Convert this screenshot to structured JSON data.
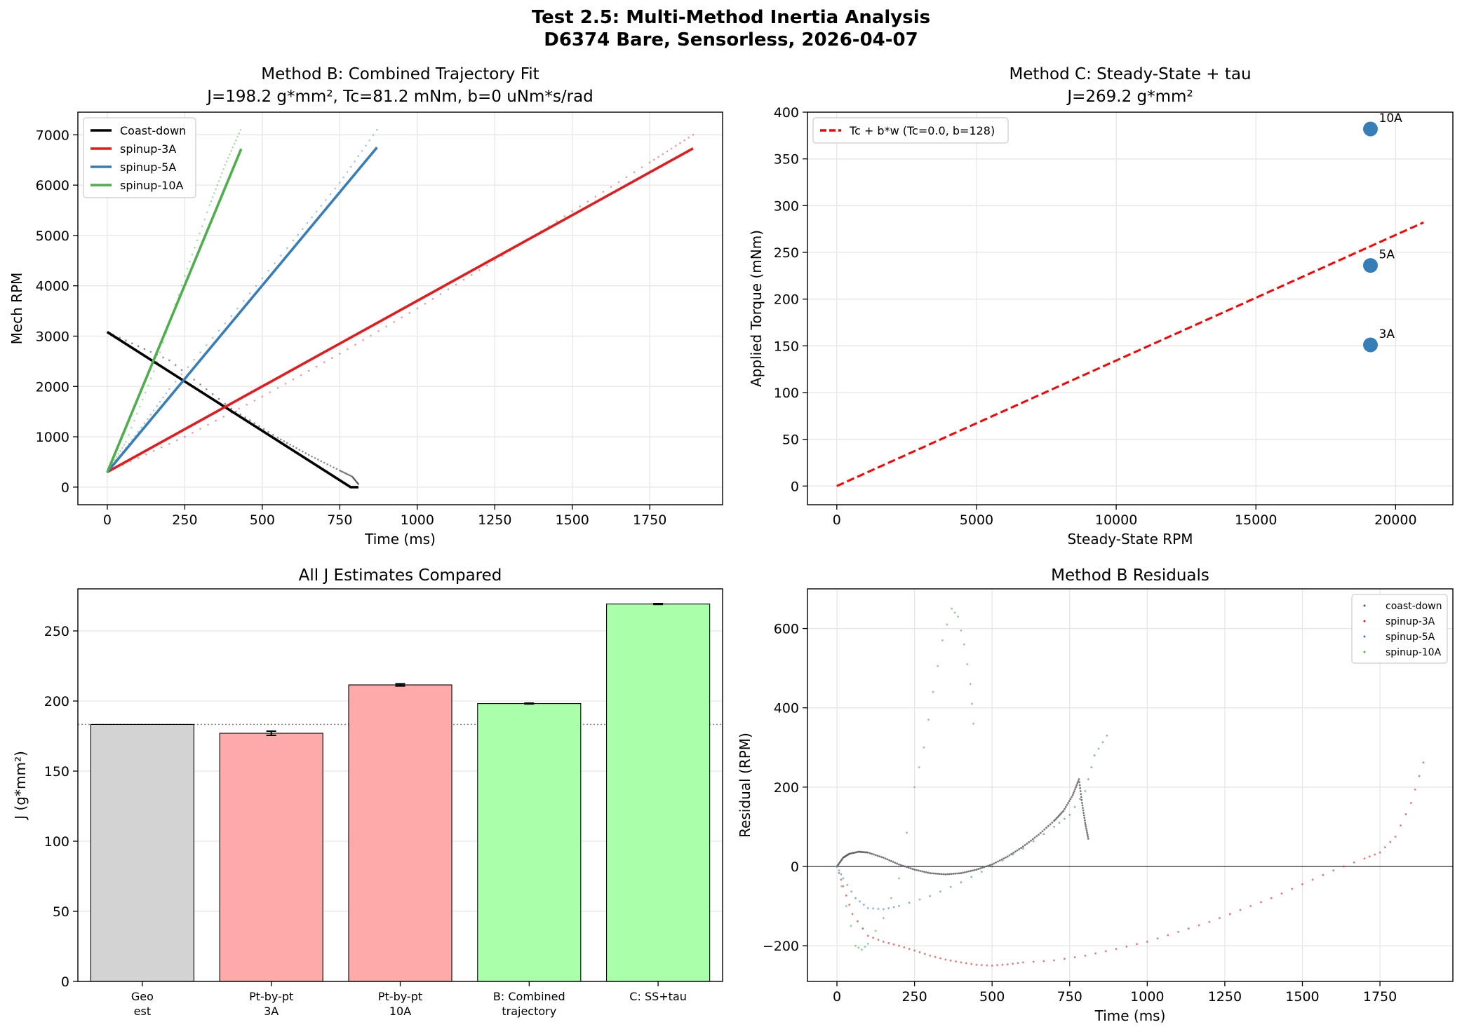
{
  "suptitle": [
    "Test 2.5: Multi-Method Inertia Analysis",
    "D6374 Bare, Sensorless, 2026-04-07"
  ],
  "colors": {
    "black": "#000000",
    "red": "#e41a1c",
    "blue": "#377eb8",
    "green": "#4daf4a",
    "grey": "#d3d3d3",
    "lightred": "#ffaaaa",
    "lightgreen": "#aaffaa",
    "fitline": "#ff0000"
  },
  "chart_data": [
    {
      "type": "line",
      "title": "Method B: Combined Trajectory Fit",
      "subtitle": "J=198.2 g*mm², Tc=81.2 mNm, b=0 uNm*s/rad",
      "xlabel": "Time (ms)",
      "ylabel": "Mech RPM",
      "xlim": [
        -95,
        1985
      ],
      "ylim": [
        -350,
        7450
      ],
      "xticks": [
        0,
        250,
        500,
        750,
        1000,
        1250,
        1500,
        1750
      ],
      "yticks": [
        0,
        1000,
        2000,
        3000,
        4000,
        5000,
        6000,
        7000
      ],
      "grid": true,
      "legend_position": "top-left",
      "series": [
        {
          "name": "Coast-down",
          "color": "#000000",
          "points": [
            [
              0,
              3080
            ],
            [
              785,
              0
            ],
            [
              810,
              0
            ]
          ]
        },
        {
          "name": "spinup-3A",
          "color": "#e41a1c",
          "points": [
            [
              0,
              300
            ],
            [
              1890,
              6730
            ]
          ]
        },
        {
          "name": "spinup-5A",
          "color": "#377eb8",
          "points": [
            [
              0,
              300
            ],
            [
              870,
              6750
            ]
          ]
        },
        {
          "name": "spinup-10A",
          "color": "#4daf4a",
          "points": [
            [
              0,
              300
            ],
            [
              432,
              6720
            ]
          ]
        }
      ],
      "measured": [
        {
          "series": "Coast-down",
          "points": [
            [
              0,
              3080
            ],
            [
              200,
              2520
            ],
            [
              400,
              1560
            ],
            [
              550,
              980
            ],
            [
              650,
              640
            ],
            [
              750,
              330
            ],
            [
              790,
              210
            ],
            [
              810,
              60
            ]
          ]
        },
        {
          "series": "spinup-3A",
          "points": [
            [
              0,
              300
            ],
            [
              250,
              1000
            ],
            [
              500,
              1800
            ],
            [
              750,
              2650
            ],
            [
              1000,
              3550
            ],
            [
              1250,
              4500
            ],
            [
              1500,
              5480
            ],
            [
              1750,
              6450
            ],
            [
              1890,
              7000
            ]
          ]
        },
        {
          "series": "spinup-5A",
          "points": [
            [
              0,
              300
            ],
            [
              100,
              1100
            ],
            [
              200,
              1950
            ],
            [
              400,
              3400
            ],
            [
              600,
              4900
            ],
            [
              750,
              6050
            ],
            [
              870,
              7100
            ]
          ]
        },
        {
          "series": "spinup-10A",
          "points": [
            [
              0,
              300
            ],
            [
              60,
              900
            ],
            [
              150,
              2300
            ],
            [
              250,
              4200
            ],
            [
              330,
              5600
            ],
            [
              380,
              6400
            ],
            [
              430,
              7100
            ]
          ]
        }
      ]
    },
    {
      "type": "scatter",
      "title": "Method C: Steady-State + tau",
      "subtitle": "J=269.2 g*mm²",
      "xlabel": "Steady-State RPM",
      "ylabel": "Applied Torque (mNm)",
      "xlim": [
        -1050,
        22050
      ],
      "ylim": [
        -20,
        400
      ],
      "xticks": [
        0,
        5000,
        10000,
        15000,
        20000
      ],
      "yticks": [
        0,
        50,
        100,
        150,
        200,
        250,
        300,
        350,
        400
      ],
      "grid": true,
      "legend_position": "top-left",
      "points": [
        {
          "label": "3A",
          "x": 19100,
          "y": 151
        },
        {
          "label": "5A",
          "x": 19100,
          "y": 236
        },
        {
          "label": "10A",
          "x": 19100,
          "y": 382
        }
      ],
      "fit": {
        "name": "Tc + b*w (Tc=0.0, b=128)",
        "points": [
          [
            0,
            0
          ],
          [
            21000,
            282
          ]
        ]
      }
    },
    {
      "type": "bar",
      "title": "All J Estimates Compared",
      "ylabel": "J (g*mm²)",
      "ylim": [
        0,
        280
      ],
      "yticks": [
        0,
        50,
        100,
        150,
        200,
        250
      ],
      "grid": true,
      "categories": [
        [
          "Geo",
          "est"
        ],
        [
          "Pt-by-pt",
          "3A"
        ],
        [
          "Pt-by-pt",
          "10A"
        ],
        [
          "B: Combined",
          "trajectory"
        ],
        [
          "C: SS+tau"
        ]
      ],
      "values": [
        183.3,
        177.0,
        211.5,
        198.2,
        269.2
      ],
      "errors": [
        0,
        1.5,
        0.8,
        0.3,
        0.3
      ],
      "reference_line": 183.3,
      "bar_colors": [
        "#d3d3d3",
        "#ffaaaa",
        "#ffaaaa",
        "#aaffaa",
        "#aaffaa"
      ]
    },
    {
      "type": "scatter",
      "title": "Method B Residuals",
      "xlabel": "Time (ms)",
      "ylabel": "Residual (RPM)",
      "xlim": [
        -95,
        1985
      ],
      "ylim": [
        -290,
        700
      ],
      "xticks": [
        0,
        250,
        500,
        750,
        1000,
        1250,
        1500,
        1750
      ],
      "yticks": [
        -200,
        0,
        200,
        400,
        600
      ],
      "tick_labels_y": [
        "−200",
        "0",
        "200",
        "400",
        "600"
      ],
      "grid": true,
      "legend_position": "top-right",
      "series": [
        {
          "name": "coast-down",
          "color": "#555555",
          "points": [
            [
              0,
              0
            ],
            [
              20,
              22
            ],
            [
              40,
              32
            ],
            [
              70,
              37
            ],
            [
              100,
              35
            ],
            [
              150,
              22
            ],
            [
              200,
              5
            ],
            [
              250,
              -8
            ],
            [
              300,
              -17
            ],
            [
              350,
              -20
            ],
            [
              400,
              -17
            ],
            [
              450,
              -8
            ],
            [
              500,
              5
            ],
            [
              550,
              25
            ],
            [
              600,
              50
            ],
            [
              650,
              80
            ],
            [
              700,
              115
            ],
            [
              730,
              140
            ],
            [
              760,
              180
            ],
            [
              780,
              220
            ],
            [
              790,
              160
            ],
            [
              800,
              110
            ],
            [
              810,
              70
            ]
          ]
        },
        {
          "name": "spinup-3A",
          "color": "#e41a1c",
          "points": [
            [
              0,
              0
            ],
            [
              20,
              -50
            ],
            [
              50,
              -120
            ],
            [
              100,
              -175
            ],
            [
              150,
              -190
            ],
            [
              200,
              -200
            ],
            [
              250,
              -212
            ],
            [
              300,
              -225
            ],
            [
              350,
              -235
            ],
            [
              400,
              -242
            ],
            [
              450,
              -248
            ],
            [
              500,
              -250
            ],
            [
              550,
              -247
            ],
            [
              600,
              -242
            ],
            [
              700,
              -237
            ],
            [
              800,
              -225
            ],
            [
              900,
              -208
            ],
            [
              1000,
              -190
            ],
            [
              1100,
              -165
            ],
            [
              1200,
              -140
            ],
            [
              1300,
              -110
            ],
            [
              1400,
              -80
            ],
            [
              1500,
              -45
            ],
            [
              1600,
              -10
            ],
            [
              1700,
              20
            ],
            [
              1750,
              35
            ],
            [
              1800,
              75
            ],
            [
              1850,
              160
            ],
            [
              1890,
              262
            ]
          ]
        },
        {
          "name": "spinup-5A",
          "color": "#377eb8",
          "points": [
            [
              0,
              0
            ],
            [
              20,
              -30
            ],
            [
              60,
              -80
            ],
            [
              100,
              -105
            ],
            [
              150,
              -108
            ],
            [
              200,
              -100
            ],
            [
              300,
              -75
            ],
            [
              400,
              -40
            ],
            [
              500,
              0
            ],
            [
              600,
              45
            ],
            [
              700,
              100
            ],
            [
              750,
              130
            ],
            [
              800,
              190
            ],
            [
              830,
              280
            ],
            [
              870,
              330
            ]
          ]
        },
        {
          "name": "spinup-10A",
          "color": "#4daf4a",
          "points": [
            [
              0,
              0
            ],
            [
              30,
              -100
            ],
            [
              60,
              -200
            ],
            [
              80,
              -210
            ],
            [
              100,
              -195
            ],
            [
              150,
              -130
            ],
            [
              200,
              -30
            ],
            [
              250,
              200
            ],
            [
              280,
              300
            ],
            [
              310,
              440
            ],
            [
              340,
              570
            ],
            [
              370,
              650
            ],
            [
              390,
              630
            ],
            [
              410,
              560
            ],
            [
              430,
              460
            ],
            [
              440,
              360
            ]
          ]
        }
      ]
    }
  ]
}
